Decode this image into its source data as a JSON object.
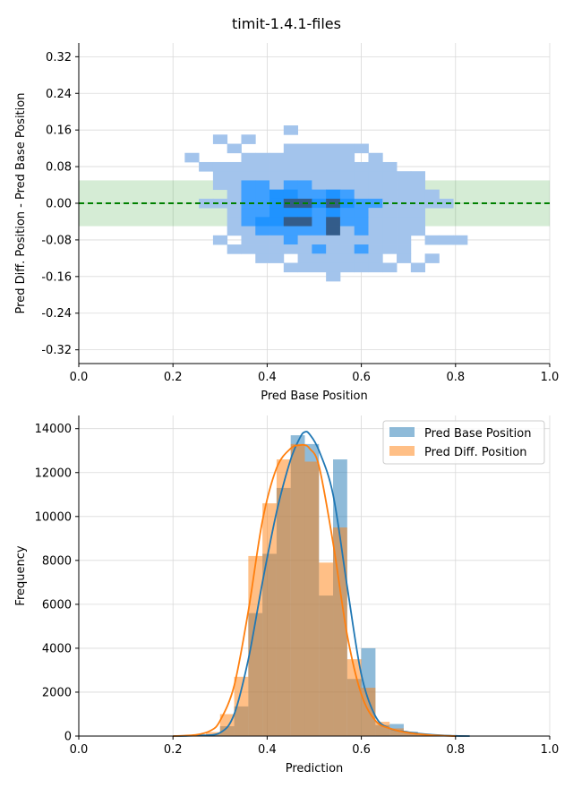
{
  "figure": {
    "title": "timit-1.4.1-files"
  },
  "colors": {
    "base": "#1f77b4",
    "diff": "#ff7f0e",
    "band": "#2ca02c",
    "zero_line": "#008000",
    "grid": "#d9d9d9",
    "heat_low": "#a3c4ec",
    "heat_mid": "#3fa0ff",
    "heat_high": "#1f93ff",
    "heat_max": "#335c8a"
  },
  "chart_data": [
    {
      "type": "heatmap",
      "title": "",
      "xlabel": "Pred Base Position",
      "ylabel": "Pred Diff. Position - Pred Base Position",
      "xlim": [
        0.0,
        1.0
      ],
      "ylim": [
        -0.35,
        0.35
      ],
      "xticks": [
        "0.0",
        "0.2",
        "0.4",
        "0.6",
        "0.8",
        "1.0"
      ],
      "yticks": [
        "0.32",
        "0.24",
        "0.16",
        "0.08",
        "0.00",
        "-0.08",
        "-0.16",
        "-0.24",
        "-0.32"
      ],
      "grid": true,
      "tolerance_band": [
        -0.05,
        0.05
      ],
      "zero_line": 0.0,
      "cells": [
        [
          0.45,
          0.16,
          1
        ],
        [
          0.3,
          0.14,
          1
        ],
        [
          0.36,
          0.14,
          1
        ],
        [
          0.33,
          0.12,
          1
        ],
        [
          0.45,
          0.12,
          1
        ],
        [
          0.48,
          0.12,
          1
        ],
        [
          0.51,
          0.12,
          1
        ],
        [
          0.54,
          0.12,
          1
        ],
        [
          0.57,
          0.12,
          1
        ],
        [
          0.6,
          0.12,
          1
        ],
        [
          0.24,
          0.1,
          1
        ],
        [
          0.36,
          0.1,
          1
        ],
        [
          0.39,
          0.1,
          1
        ],
        [
          0.42,
          0.1,
          1
        ],
        [
          0.45,
          0.1,
          1
        ],
        [
          0.48,
          0.1,
          1
        ],
        [
          0.51,
          0.1,
          1
        ],
        [
          0.54,
          0.1,
          1
        ],
        [
          0.57,
          0.1,
          1
        ],
        [
          0.63,
          0.1,
          1
        ],
        [
          0.27,
          0.08,
          1
        ],
        [
          0.3,
          0.08,
          1
        ],
        [
          0.33,
          0.08,
          1
        ],
        [
          0.36,
          0.08,
          1
        ],
        [
          0.39,
          0.08,
          1
        ],
        [
          0.42,
          0.08,
          1
        ],
        [
          0.45,
          0.08,
          1
        ],
        [
          0.48,
          0.08,
          1
        ],
        [
          0.51,
          0.08,
          1
        ],
        [
          0.54,
          0.08,
          1
        ],
        [
          0.57,
          0.08,
          1
        ],
        [
          0.6,
          0.08,
          1
        ],
        [
          0.63,
          0.08,
          1
        ],
        [
          0.66,
          0.08,
          1
        ],
        [
          0.3,
          0.06,
          1
        ],
        [
          0.33,
          0.06,
          1
        ],
        [
          0.36,
          0.06,
          1
        ],
        [
          0.39,
          0.06,
          1
        ],
        [
          0.42,
          0.06,
          1
        ],
        [
          0.45,
          0.06,
          1
        ],
        [
          0.48,
          0.06,
          1
        ],
        [
          0.51,
          0.06,
          1
        ],
        [
          0.54,
          0.06,
          1
        ],
        [
          0.57,
          0.06,
          1
        ],
        [
          0.6,
          0.06,
          1
        ],
        [
          0.63,
          0.06,
          1
        ],
        [
          0.66,
          0.06,
          1
        ],
        [
          0.69,
          0.06,
          1
        ],
        [
          0.72,
          0.06,
          1
        ],
        [
          0.3,
          0.04,
          1
        ],
        [
          0.33,
          0.04,
          1
        ],
        [
          0.36,
          0.04,
          2
        ],
        [
          0.39,
          0.04,
          2
        ],
        [
          0.42,
          0.04,
          1
        ],
        [
          0.45,
          0.04,
          2
        ],
        [
          0.48,
          0.04,
          2
        ],
        [
          0.51,
          0.04,
          1
        ],
        [
          0.54,
          0.04,
          1
        ],
        [
          0.57,
          0.04,
          1
        ],
        [
          0.6,
          0.04,
          1
        ],
        [
          0.63,
          0.04,
          1
        ],
        [
          0.66,
          0.04,
          1
        ],
        [
          0.69,
          0.04,
          1
        ],
        [
          0.72,
          0.04,
          1
        ],
        [
          0.33,
          0.02,
          1
        ],
        [
          0.36,
          0.02,
          2
        ],
        [
          0.39,
          0.02,
          2
        ],
        [
          0.42,
          0.02,
          3
        ],
        [
          0.45,
          0.02,
          3
        ],
        [
          0.48,
          0.02,
          2
        ],
        [
          0.51,
          0.02,
          2
        ],
        [
          0.54,
          0.02,
          3
        ],
        [
          0.57,
          0.02,
          2
        ],
        [
          0.6,
          0.02,
          1
        ],
        [
          0.63,
          0.02,
          1
        ],
        [
          0.66,
          0.02,
          1
        ],
        [
          0.69,
          0.02,
          1
        ],
        [
          0.72,
          0.02,
          1
        ],
        [
          0.75,
          0.02,
          1
        ],
        [
          0.27,
          0.0,
          1
        ],
        [
          0.3,
          0.0,
          1
        ],
        [
          0.33,
          0.0,
          1
        ],
        [
          0.36,
          0.0,
          2
        ],
        [
          0.39,
          0.0,
          2
        ],
        [
          0.42,
          0.0,
          3
        ],
        [
          0.45,
          0.0,
          4
        ],
        [
          0.48,
          0.0,
          4
        ],
        [
          0.51,
          0.0,
          3
        ],
        [
          0.54,
          0.0,
          4
        ],
        [
          0.57,
          0.0,
          3
        ],
        [
          0.6,
          0.0,
          2
        ],
        [
          0.63,
          0.0,
          2
        ],
        [
          0.66,
          0.0,
          1
        ],
        [
          0.69,
          0.0,
          1
        ],
        [
          0.72,
          0.0,
          1
        ],
        [
          0.75,
          0.0,
          1
        ],
        [
          0.78,
          0.0,
          1
        ],
        [
          0.33,
          -0.02,
          1
        ],
        [
          0.36,
          -0.02,
          2
        ],
        [
          0.39,
          -0.02,
          2
        ],
        [
          0.42,
          -0.02,
          3
        ],
        [
          0.45,
          -0.02,
          3
        ],
        [
          0.48,
          -0.02,
          3
        ],
        [
          0.51,
          -0.02,
          2
        ],
        [
          0.54,
          -0.02,
          3
        ],
        [
          0.57,
          -0.02,
          2
        ],
        [
          0.6,
          -0.02,
          2
        ],
        [
          0.63,
          -0.02,
          1
        ],
        [
          0.66,
          -0.02,
          1
        ],
        [
          0.69,
          -0.02,
          1
        ],
        [
          0.72,
          -0.02,
          1
        ],
        [
          0.33,
          -0.04,
          1
        ],
        [
          0.36,
          -0.04,
          2
        ],
        [
          0.39,
          -0.04,
          3
        ],
        [
          0.42,
          -0.04,
          3
        ],
        [
          0.45,
          -0.04,
          4
        ],
        [
          0.48,
          -0.04,
          4
        ],
        [
          0.51,
          -0.04,
          2
        ],
        [
          0.54,
          -0.04,
          4
        ],
        [
          0.57,
          -0.04,
          2
        ],
        [
          0.6,
          -0.04,
          2
        ],
        [
          0.63,
          -0.04,
          1
        ],
        [
          0.66,
          -0.04,
          1
        ],
        [
          0.69,
          -0.04,
          1
        ],
        [
          0.72,
          -0.04,
          1
        ],
        [
          0.33,
          -0.06,
          1
        ],
        [
          0.36,
          -0.06,
          1
        ],
        [
          0.39,
          -0.06,
          2
        ],
        [
          0.42,
          -0.06,
          2
        ],
        [
          0.45,
          -0.06,
          2
        ],
        [
          0.48,
          -0.06,
          2
        ],
        [
          0.51,
          -0.06,
          2
        ],
        [
          0.54,
          -0.06,
          4
        ],
        [
          0.57,
          -0.06,
          1
        ],
        [
          0.6,
          -0.06,
          2
        ],
        [
          0.63,
          -0.06,
          1
        ],
        [
          0.66,
          -0.06,
          1
        ],
        [
          0.69,
          -0.06,
          1
        ],
        [
          0.72,
          -0.06,
          1
        ],
        [
          0.3,
          -0.08,
          1
        ],
        [
          0.36,
          -0.08,
          1
        ],
        [
          0.39,
          -0.08,
          1
        ],
        [
          0.42,
          -0.08,
          1
        ],
        [
          0.45,
          -0.08,
          2
        ],
        [
          0.48,
          -0.08,
          1
        ],
        [
          0.51,
          -0.08,
          1
        ],
        [
          0.54,
          -0.08,
          1
        ],
        [
          0.57,
          -0.08,
          1
        ],
        [
          0.6,
          -0.08,
          1
        ],
        [
          0.63,
          -0.08,
          1
        ],
        [
          0.66,
          -0.08,
          1
        ],
        [
          0.69,
          -0.08,
          1
        ],
        [
          0.75,
          -0.08,
          1
        ],
        [
          0.78,
          -0.08,
          1
        ],
        [
          0.81,
          -0.08,
          1
        ],
        [
          0.33,
          -0.1,
          1
        ],
        [
          0.36,
          -0.1,
          1
        ],
        [
          0.39,
          -0.1,
          1
        ],
        [
          0.42,
          -0.1,
          1
        ],
        [
          0.45,
          -0.1,
          1
        ],
        [
          0.48,
          -0.1,
          1
        ],
        [
          0.51,
          -0.1,
          2
        ],
        [
          0.54,
          -0.1,
          1
        ],
        [
          0.57,
          -0.1,
          1
        ],
        [
          0.6,
          -0.1,
          2
        ],
        [
          0.63,
          -0.1,
          1
        ],
        [
          0.66,
          -0.1,
          1
        ],
        [
          0.69,
          -0.1,
          1
        ],
        [
          0.39,
          -0.12,
          1
        ],
        [
          0.42,
          -0.12,
          1
        ],
        [
          0.48,
          -0.12,
          1
        ],
        [
          0.51,
          -0.12,
          1
        ],
        [
          0.54,
          -0.12,
          1
        ],
        [
          0.57,
          -0.12,
          1
        ],
        [
          0.6,
          -0.12,
          1
        ],
        [
          0.63,
          -0.12,
          1
        ],
        [
          0.69,
          -0.12,
          1
        ],
        [
          0.75,
          -0.12,
          1
        ],
        [
          0.45,
          -0.14,
          1
        ],
        [
          0.48,
          -0.14,
          1
        ],
        [
          0.51,
          -0.14,
          1
        ],
        [
          0.54,
          -0.14,
          1
        ],
        [
          0.57,
          -0.14,
          1
        ],
        [
          0.6,
          -0.14,
          1
        ],
        [
          0.63,
          -0.14,
          1
        ],
        [
          0.66,
          -0.14,
          1
        ],
        [
          0.72,
          -0.14,
          1
        ],
        [
          0.54,
          -0.16,
          1
        ]
      ]
    },
    {
      "type": "bar",
      "title": "",
      "xlabel": "Prediction",
      "ylabel": "Frequency",
      "xlim": [
        0.0,
        1.0
      ],
      "ylim": [
        0,
        14600
      ],
      "xticks": [
        "0.0",
        "0.2",
        "0.4",
        "0.6",
        "0.8",
        "1.0"
      ],
      "yticks": [
        "0",
        "2000",
        "4000",
        "6000",
        "8000",
        "10000",
        "12000",
        "14000"
      ],
      "grid": true,
      "legend_position": "top-right",
      "bin_edges": [
        0.21,
        0.24,
        0.27,
        0.3,
        0.33,
        0.36,
        0.39,
        0.42,
        0.45,
        0.48,
        0.51,
        0.54,
        0.57,
        0.6,
        0.63,
        0.66,
        0.69,
        0.72,
        0.75,
        0.78,
        0.81,
        0.84
      ],
      "series": [
        {
          "name": "Pred Base Position",
          "values": [
            0,
            20,
            80,
            450,
            1350,
            5600,
            8300,
            11300,
            13700,
            13300,
            6400,
            12600,
            2600,
            4000,
            500,
            550,
            200,
            60,
            20,
            10,
            5
          ]
        },
        {
          "name": "Pred Diff. Position",
          "values": [
            10,
            40,
            180,
            1000,
            2700,
            8200,
            10600,
            12600,
            13300,
            12500,
            7900,
            9500,
            3500,
            2200,
            650,
            350,
            150,
            40,
            10,
            5,
            0
          ]
        }
      ],
      "kde": [
        {
          "name": "Pred Base Position",
          "x": [
            0.2,
            0.25,
            0.3,
            0.33,
            0.36,
            0.39,
            0.42,
            0.45,
            0.47,
            0.48,
            0.49,
            0.51,
            0.54,
            0.57,
            0.6,
            0.63,
            0.66,
            0.7,
            0.75,
            0.8,
            0.83
          ],
          "y": [
            0,
            30,
            150,
            1000,
            3500,
            7000,
            10200,
            12600,
            13600,
            13850,
            13750,
            13000,
            11000,
            6800,
            2800,
            900,
            350,
            180,
            60,
            10,
            0
          ]
        },
        {
          "name": "Pred Diff. Position",
          "x": [
            0.2,
            0.25,
            0.28,
            0.3,
            0.33,
            0.36,
            0.39,
            0.42,
            0.45,
            0.47,
            0.48,
            0.49,
            0.51,
            0.54,
            0.57,
            0.6,
            0.63,
            0.66,
            0.7,
            0.75,
            0.8
          ],
          "y": [
            0,
            60,
            250,
            700,
            2300,
            5700,
            9800,
            12200,
            13100,
            13250,
            13250,
            13100,
            12300,
            8800,
            4600,
            1900,
            700,
            350,
            150,
            40,
            0
          ]
        }
      ]
    }
  ]
}
